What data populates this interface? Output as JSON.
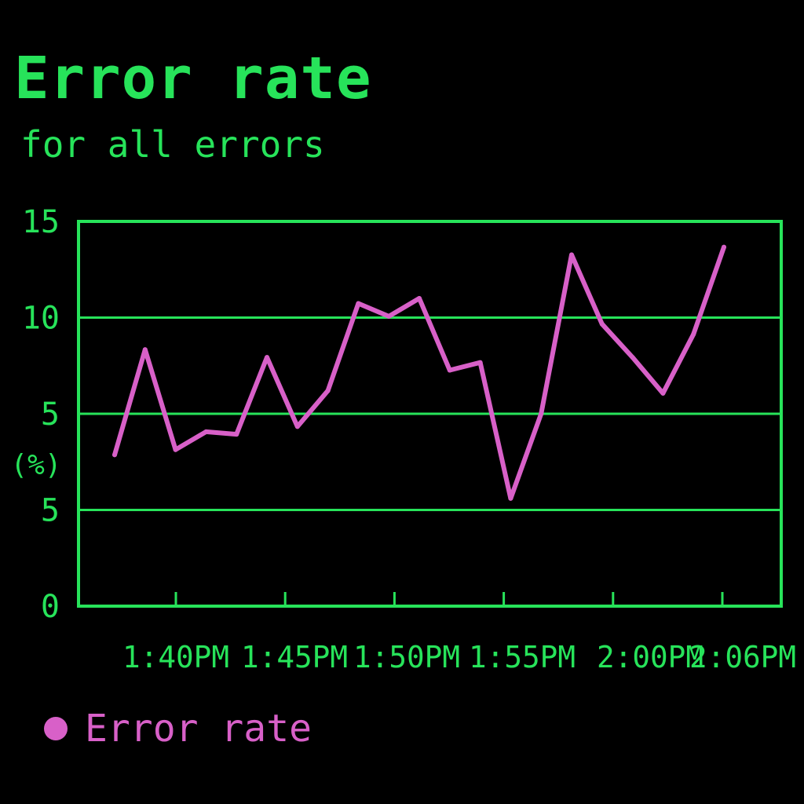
{
  "chart_data": {
    "type": "line",
    "title": "Error rate",
    "subtitle": "for all errors",
    "ylabel": "(%)",
    "xlabel": "",
    "ylim": [
      0,
      15
    ],
    "y_tick_labels": [
      "0",
      "5",
      "5",
      "10",
      "15"
    ],
    "x_tick_labels": [
      "1:40PM",
      "1:45PM",
      "1:50PM",
      "1:55PM",
      "2:00PM",
      "2:06PM"
    ],
    "grid": true,
    "legend_position": "bottom-left",
    "series": [
      {
        "name": "Error rate",
        "color": "#d860c8",
        "x": [
          "1:36PM",
          "1:38PM",
          "1:40PM",
          "1:41PM",
          "1:43PM",
          "1:44PM",
          "1:45PM",
          "1:47PM",
          "1:49PM",
          "1:50PM",
          "1:52PM",
          "1:54PM",
          "1:55PM",
          "1:56PM",
          "1:57PM",
          "1:59PM",
          "2:00PM",
          "2:01PM",
          "2:03PM",
          "2:04PM",
          "2:06PM"
        ],
        "values": [
          5.9,
          10.0,
          6.1,
          6.8,
          6.7,
          9.7,
          7.0,
          8.4,
          11.8,
          11.3,
          12.0,
          9.2,
          9.5,
          4.2,
          7.5,
          13.7,
          11.0,
          9.7,
          8.3,
          10.6,
          14.0
        ]
      }
    ]
  },
  "legend": {
    "label": "Error rate",
    "color": "#d860c8"
  },
  "colors": {
    "accent": "#27e35a",
    "background": "#000000",
    "series": "#d860c8"
  }
}
